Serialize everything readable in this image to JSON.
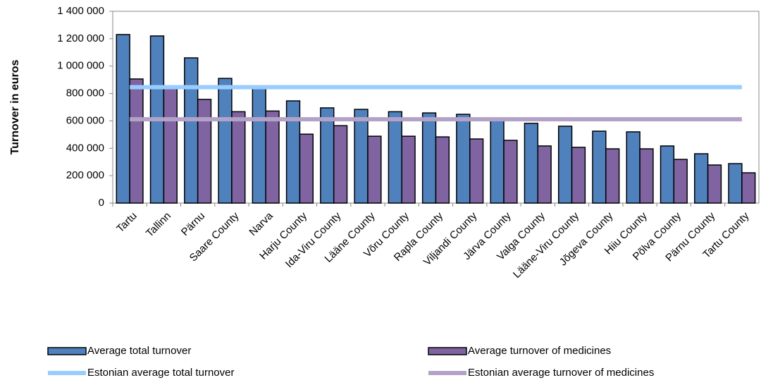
{
  "chart_data": {
    "type": "bar",
    "y_axis_label": "Turnover in euros",
    "categories": [
      "Tartu",
      "Tallinn",
      "Pärnu",
      "Saare County",
      "Narva",
      "Harju County",
      "Ida-Viru County",
      "Lääne County",
      "Võru County",
      "Rapla County",
      "Viljandi County",
      "Järva County",
      "Valga County",
      "Lääne-Viru County",
      "Jõgeva County",
      "Hiiu County",
      "Põlva County",
      "Pärnu County",
      "Tartu County"
    ],
    "series": [
      {
        "name": "Average total turnover",
        "color": "#4f81bd",
        "values": [
          1230000,
          1220000,
          1060000,
          910000,
          840000,
          746000,
          695000,
          684000,
          667000,
          658000,
          648000,
          607000,
          582000,
          561000,
          525000,
          520000,
          417000,
          360000,
          288000
        ]
      },
      {
        "name": "Average turnover of medicines",
        "color": "#8064a2",
        "values": [
          906000,
          840000,
          757000,
          667000,
          672000,
          503000,
          565000,
          488000,
          488000,
          483000,
          468000,
          458000,
          417000,
          407000,
          396000,
          396000,
          319000,
          278000,
          221000
        ]
      }
    ],
    "lines": [
      {
        "name": "Estonian average total turnover",
        "color": "#99ccff",
        "value": 846000
      },
      {
        "name": "Estonian average turnover of medicines",
        "color": "#b3a2c7",
        "value": 612000
      }
    ],
    "ylim": [
      0,
      1400000
    ],
    "yticks": [
      0,
      {
        "value": 200000,
        "label": "200 000"
      },
      {
        "value": 400000,
        "label": "400 000"
      },
      {
        "value": 600000,
        "label": "600 000"
      },
      {
        "value": 800000,
        "label": "800 000"
      },
      {
        "value": 1000000,
        "label": "1 000 000"
      },
      {
        "value": 1200000,
        "label": "1 200 000"
      },
      {
        "value": 1400000,
        "label": "1 400 000"
      }
    ],
    "legend_position": "bottom"
  }
}
